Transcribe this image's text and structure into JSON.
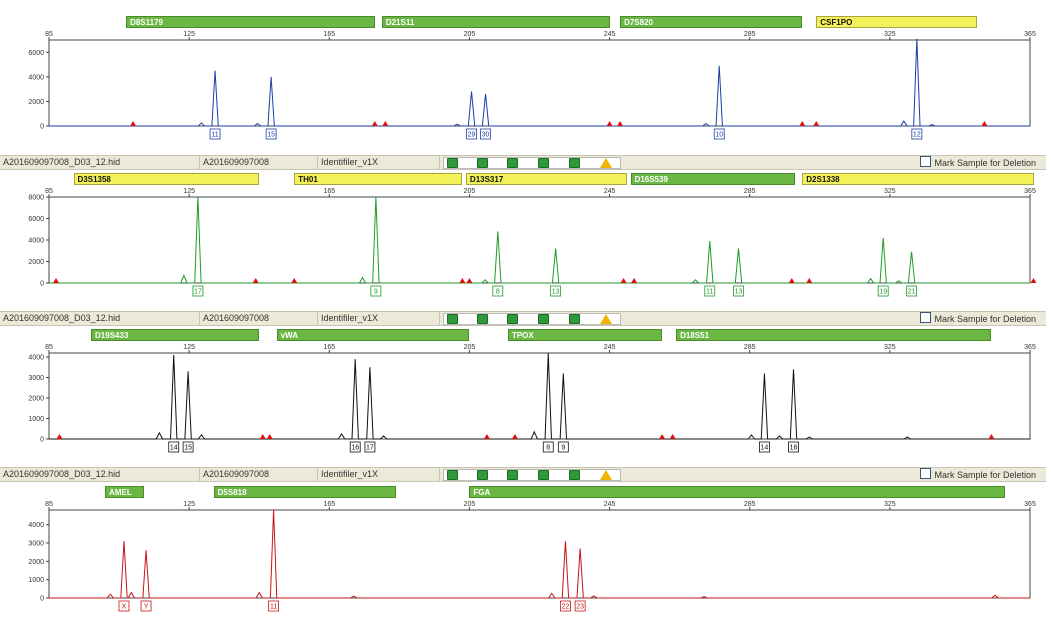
{
  "x_axis": {
    "min": 85,
    "max": 365,
    "ticks": [
      85,
      125,
      165,
      205,
      245,
      285,
      325,
      365
    ]
  },
  "mark_label": "Mark Sample for Deletion",
  "panels": [
    {
      "color": "#1a3fa8",
      "info": null,
      "ymax": 7000,
      "y_ticks": [
        0,
        2000,
        4000,
        6000
      ],
      "markers": [
        {
          "name": "D8S1179",
          "style": "green",
          "start": 107,
          "end": 178
        },
        {
          "name": "D21S11",
          "style": "green",
          "start": 180,
          "end": 245
        },
        {
          "name": "D7S820",
          "style": "green",
          "start": 248,
          "end": 300
        },
        {
          "name": "CSF1PO",
          "style": "yellow",
          "start": 304,
          "end": 350
        }
      ],
      "peaks": [
        {
          "x": 132.4,
          "h": 4500,
          "label": "11"
        },
        {
          "x": 148.4,
          "h": 4000,
          "label": "15"
        },
        {
          "x": 205.6,
          "h": 2800,
          "label": "29"
        },
        {
          "x": 209.6,
          "h": 2600,
          "label": "30"
        },
        {
          "x": 276.3,
          "h": 4900,
          "label": "10"
        },
        {
          "x": 332.7,
          "h": 7100,
          "label": "12"
        }
      ],
      "small_peaks": [
        {
          "x": 128.5,
          "h": 250
        },
        {
          "x": 144.5,
          "h": 200
        },
        {
          "x": 201.5,
          "h": 150
        },
        {
          "x": 272.5,
          "h": 200
        },
        {
          "x": 329,
          "h": 400
        },
        {
          "x": 337,
          "h": 120
        }
      ],
      "red_markers": [
        109,
        178,
        181,
        245,
        248,
        300,
        304,
        352
      ]
    },
    {
      "color": "#1f9a28",
      "info": {
        "file": "A201609097008_D03_12.hid",
        "sample": "A201609097008",
        "kit": "Identifiler_v1X"
      },
      "ymax": 8000,
      "y_ticks": [
        0,
        2000,
        4000,
        6000,
        8000
      ],
      "markers": [
        {
          "name": "D3S1358",
          "style": "yellow",
          "start": 92,
          "end": 145
        },
        {
          "name": "TH01",
          "style": "yellow",
          "start": 155,
          "end": 203
        },
        {
          "name": "D13S317",
          "style": "yellow",
          "start": 204,
          "end": 250
        },
        {
          "name": "D16S539",
          "style": "green",
          "start": 251,
          "end": 298
        },
        {
          "name": "D2S1338",
          "style": "yellow",
          "start": 300,
          "end": 366
        }
      ],
      "peaks": [
        {
          "x": 127.5,
          "h": 8000,
          "label": "17"
        },
        {
          "x": 178.3,
          "h": 8000,
          "label": "9"
        },
        {
          "x": 213.1,
          "h": 4800,
          "label": "8"
        },
        {
          "x": 229.6,
          "h": 3200,
          "label": "13"
        },
        {
          "x": 273.6,
          "h": 3900,
          "label": "11"
        },
        {
          "x": 281.8,
          "h": 3200,
          "label": "13"
        },
        {
          "x": 323.1,
          "h": 4200,
          "label": "19"
        },
        {
          "x": 331.2,
          "h": 2900,
          "label": "21"
        }
      ],
      "small_peaks": [
        {
          "x": 123.5,
          "h": 700
        },
        {
          "x": 174.5,
          "h": 500
        },
        {
          "x": 209.5,
          "h": 300
        },
        {
          "x": 269.5,
          "h": 300
        },
        {
          "x": 319.5,
          "h": 400
        },
        {
          "x": 327.5,
          "h": 200
        }
      ],
      "red_markers": [
        87,
        144,
        155,
        203,
        205,
        249,
        252,
        297,
        302,
        366
      ]
    },
    {
      "color": "#111111",
      "info": {
        "file": "A201609097008_D03_12.hid",
        "sample": "A201609097008",
        "kit": "Identifiler_v1X"
      },
      "ymax": 4200,
      "y_ticks": [
        0,
        1000,
        2000,
        3000,
        4000
      ],
      "markers": [
        {
          "name": "D19S433",
          "style": "green",
          "start": 97,
          "end": 145
        },
        {
          "name": "vWA",
          "style": "green",
          "start": 150,
          "end": 205
        },
        {
          "name": "TPOX",
          "style": "green",
          "start": 216,
          "end": 260
        },
        {
          "name": "D18S51",
          "style": "green",
          "start": 264,
          "end": 354
        }
      ],
      "peaks": [
        {
          "x": 120.6,
          "h": 4100,
          "label": "14"
        },
        {
          "x": 124.7,
          "h": 3300,
          "label": "15"
        },
        {
          "x": 172.4,
          "h": 3900,
          "label": "16"
        },
        {
          "x": 176.6,
          "h": 3500,
          "label": "17"
        },
        {
          "x": 227.5,
          "h": 4200,
          "label": "8"
        },
        {
          "x": 231.8,
          "h": 3200,
          "label": "9"
        },
        {
          "x": 289.2,
          "h": 3200,
          "label": "14"
        },
        {
          "x": 297.5,
          "h": 3400,
          "label": "16"
        }
      ],
      "small_peaks": [
        {
          "x": 116.5,
          "h": 300
        },
        {
          "x": 128.5,
          "h": 200
        },
        {
          "x": 168.5,
          "h": 250
        },
        {
          "x": 180.5,
          "h": 150
        },
        {
          "x": 223.5,
          "h": 350
        },
        {
          "x": 285.5,
          "h": 200
        },
        {
          "x": 293.5,
          "h": 150
        },
        {
          "x": 302,
          "h": 100
        },
        {
          "x": 330,
          "h": 100
        }
      ],
      "red_markers": [
        88,
        146,
        148,
        210,
        218,
        260,
        263,
        354
      ]
    },
    {
      "color": "#c81414",
      "info": {
        "file": "A201609097008_D03_12.hid",
        "sample": "A201609097008",
        "kit": "Identifiler_v1X"
      },
      "ymax": 4800,
      "y_ticks": [
        0,
        1000,
        2000,
        3000,
        4000
      ],
      "markers": [
        {
          "name": "AMEL",
          "style": "green",
          "start": 101,
          "end": 112
        },
        {
          "name": "D5S818",
          "style": "green",
          "start": 132,
          "end": 184
        },
        {
          "name": "FGA",
          "style": "green",
          "start": 205,
          "end": 358
        }
      ],
      "peaks": [
        {
          "x": 106.4,
          "h": 3100,
          "label": "X"
        },
        {
          "x": 112.7,
          "h": 2600,
          "label": "Y"
        },
        {
          "x": 149.1,
          "h": 4800,
          "label": "11"
        },
        {
          "x": 232.4,
          "h": 3100,
          "label": "22"
        },
        {
          "x": 236.6,
          "h": 2700,
          "label": "23"
        }
      ],
      "small_peaks": [
        {
          "x": 102.5,
          "h": 200
        },
        {
          "x": 108.5,
          "h": 300
        },
        {
          "x": 145,
          "h": 300
        },
        {
          "x": 228.5,
          "h": 250
        },
        {
          "x": 240.5,
          "h": 120
        },
        {
          "x": 355,
          "h": 150
        },
        {
          "x": 172,
          "h": 100
        },
        {
          "x": 272,
          "h": 80
        }
      ],
      "red_markers": []
    }
  ]
}
